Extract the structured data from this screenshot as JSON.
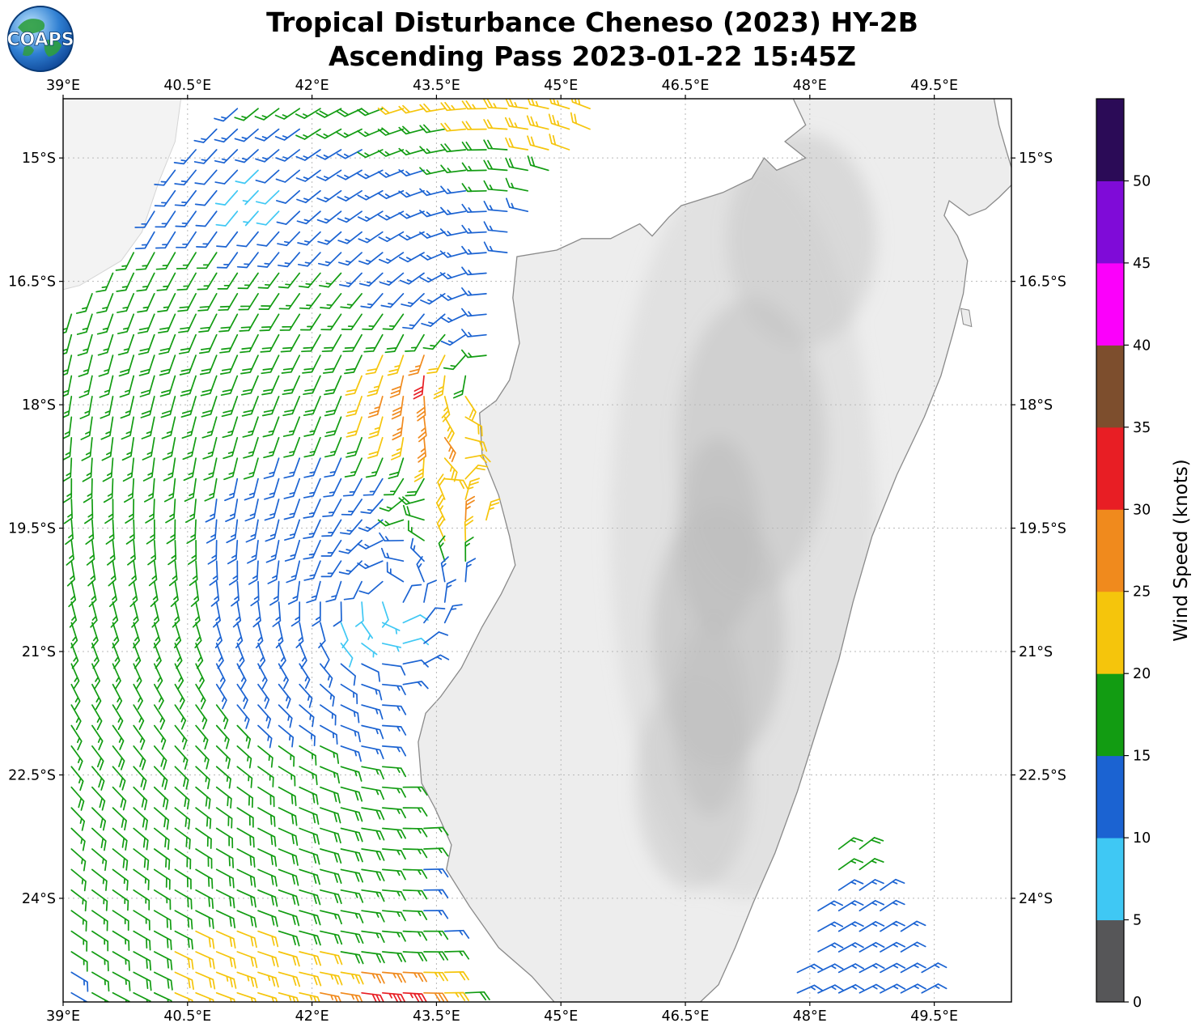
{
  "header": {
    "title_line1": "Tropical Disturbance Cheneso (2023) HY-2B",
    "title_line2": "Ascending Pass 2023-01-22 15:45Z",
    "logo_text": "COAPS"
  },
  "chart_data": {
    "type": "wind_barb_map",
    "storm": "Tropical Disturbance Cheneso (2023)",
    "satellite": "HY-2B",
    "pass_type": "Ascending",
    "datetime_utc": "2023-01-22 15:45Z",
    "extent": {
      "west": 39.0,
      "east": 50.43,
      "north": -14.28,
      "south": -25.26
    },
    "x_ticks": [
      {
        "v": 39.0,
        "label": "39°E"
      },
      {
        "v": 40.5,
        "label": "40.5°E"
      },
      {
        "v": 42.0,
        "label": "42°E"
      },
      {
        "v": 43.5,
        "label": "43.5°E"
      },
      {
        "v": 45.0,
        "label": "45°E"
      },
      {
        "v": 46.5,
        "label": "46.5°E"
      },
      {
        "v": 48.0,
        "label": "48°E"
      },
      {
        "v": 49.5,
        "label": "49.5°E"
      }
    ],
    "y_ticks": [
      {
        "v": -15.0,
        "label": "15°S"
      },
      {
        "v": -16.5,
        "label": "16.5°S"
      },
      {
        "v": -18.0,
        "label": "18°S"
      },
      {
        "v": -19.5,
        "label": "19.5°S"
      },
      {
        "v": -21.0,
        "label": "21°S"
      },
      {
        "v": -22.5,
        "label": "22.5°S"
      },
      {
        "v": -24.0,
        "label": "24°S"
      }
    ],
    "grid": {
      "color": "#b8b8b8",
      "dash": "2 4"
    },
    "ocean_color": "#ffffff",
    "land_color": "#ededed",
    "coast_color": "#8a8a8a",
    "terrain_shade_color": "#bdbdbd",
    "colorbar": {
      "label": "Wind Speed (knots)",
      "ticks": [
        "0",
        "5",
        "10",
        "15",
        "20",
        "25",
        "30",
        "35",
        "40",
        "45",
        "50"
      ],
      "bins": [
        {
          "min": 0,
          "max": 5,
          "color": "#565658"
        },
        {
          "min": 5,
          "max": 10,
          "color": "#3fc8f4"
        },
        {
          "min": 10,
          "max": 15,
          "color": "#1b63d2"
        },
        {
          "min": 15,
          "max": 20,
          "color": "#129c12"
        },
        {
          "min": 20,
          "max": 25,
          "color": "#f5c50c"
        },
        {
          "min": 25,
          "max": 30,
          "color": "#f08a1d"
        },
        {
          "min": 30,
          "max": 35,
          "color": "#e81e24"
        },
        {
          "min": 35,
          "max": 40,
          "color": "#7d4e2d"
        },
        {
          "min": 40,
          "max": 45,
          "color": "#fb00fb"
        },
        {
          "min": 45,
          "max": 50,
          "color": "#7f0bd8"
        },
        {
          "min": 50,
          "max": 55,
          "color": "#2b0b57"
        }
      ]
    },
    "barb_grid_spacing_deg": 0.25,
    "wind_field_model": {
      "base_knots": 13,
      "background": {
        "u": -2.5,
        "v": 1.0,
        "u_extra_south": -2.5,
        "south_start": -21,
        "south_span": 4
      },
      "vortices": [
        {
          "x": 42.8,
          "y": -20.8,
          "s": 20,
          "rc": 1.0,
          "p": 0.55
        },
        {
          "x": 44.3,
          "y": -17.2,
          "s": 16,
          "rc": 1.1,
          "p": 0.7
        }
      ],
      "speed_bumps": [
        {
          "x": 43.2,
          "y": -17.9,
          "sx": 0.8,
          "sy": 0.62,
          "a": 13
        },
        {
          "x": 43.3,
          "y": -17.55,
          "sx": 0.3,
          "sy": 0.25,
          "a": 7
        },
        {
          "x": 45.0,
          "y": -14.5,
          "sx": 1.4,
          "sy": 0.9,
          "a": 9
        },
        {
          "x": 43.2,
          "y": -13.9,
          "sx": 1.8,
          "sy": 0.75,
          "a": 9
        },
        {
          "x": 43.85,
          "y": -19.4,
          "sx": 0.55,
          "sy": 0.5,
          "a": 12
        },
        {
          "x": 43.6,
          "y": -18.55,
          "sx": 0.5,
          "sy": 0.4,
          "a": 8
        },
        {
          "x": 42.75,
          "y": -20.75,
          "sx": 0.45,
          "sy": 0.4,
          "a": -8
        },
        {
          "x": 41.35,
          "y": -15.55,
          "sx": 0.5,
          "sy": 0.45,
          "a": -8
        },
        {
          "x": 42.9,
          "y": -25.4,
          "sx": 1.1,
          "sy": 0.7,
          "a": 16
        },
        {
          "x": 43.0,
          "y": -25.15,
          "sx": 0.45,
          "sy": 0.3,
          "a": 6
        },
        {
          "x": 40.9,
          "y": -24.9,
          "sx": 1.3,
          "sy": 0.8,
          "a": 9
        },
        {
          "x": 42.2,
          "y": -23.2,
          "sx": 1.2,
          "sy": 0.9,
          "a": 6
        },
        {
          "x": 39.3,
          "y": -20.0,
          "sx": 1.6,
          "sy": 3.0,
          "a": 4
        },
        {
          "x": 41.2,
          "y": -17.2,
          "sx": 1.6,
          "sy": 1.2,
          "a": 6
        },
        {
          "x": 40.0,
          "y": -23.0,
          "sx": 1.6,
          "sy": 1.3,
          "a": 4
        },
        {
          "x": 48.6,
          "y": -23.4,
          "sx": 0.55,
          "sy": 0.45,
          "a": 5
        }
      ]
    },
    "swaths": [
      {
        "name": "main-west-swath",
        "polygon": [
          [
            41.05,
            -14.3
          ],
          [
            45.65,
            -14.3
          ],
          [
            44.85,
            -15.4
          ],
          [
            44.35,
            -16.4
          ],
          [
            44.15,
            -17.1
          ],
          [
            44.05,
            -18.1
          ],
          [
            43.95,
            -19.0
          ],
          [
            44.15,
            -19.5
          ],
          [
            43.9,
            -20.1
          ],
          [
            43.6,
            -20.9
          ],
          [
            43.0,
            -21.65
          ],
          [
            42.95,
            -22.35
          ],
          [
            43.25,
            -22.9
          ],
          [
            43.5,
            -23.45
          ],
          [
            43.4,
            -23.95
          ],
          [
            43.8,
            -24.55
          ],
          [
            43.9,
            -25.26
          ],
          [
            39.02,
            -25.26
          ],
          [
            39.02,
            -16.95
          ],
          [
            39.6,
            -16.05
          ],
          [
            40.3,
            -15.2
          ]
        ]
      },
      {
        "name": "southeast-patch",
        "polygon": [
          [
            48.5,
            -23.15
          ],
          [
            48.95,
            -23.8
          ],
          [
            49.4,
            -24.85
          ],
          [
            49.38,
            -25.26
          ],
          [
            47.7,
            -25.26
          ],
          [
            47.95,
            -24.3
          ],
          [
            48.25,
            -23.55
          ]
        ]
      }
    ],
    "coastlines": {
      "madagascar": [
        [
          47.8,
          -14.28
        ],
        [
          47.95,
          -14.6
        ],
        [
          47.7,
          -14.8
        ],
        [
          47.95,
          -15.0
        ],
        [
          47.6,
          -15.15
        ],
        [
          47.45,
          -15.0
        ],
        [
          47.3,
          -15.25
        ],
        [
          46.95,
          -15.42
        ],
        [
          46.45,
          -15.58
        ],
        [
          46.3,
          -15.72
        ],
        [
          46.1,
          -15.95
        ],
        [
          45.95,
          -15.8
        ],
        [
          45.6,
          -15.98
        ],
        [
          45.25,
          -15.98
        ],
        [
          44.95,
          -16.12
        ],
        [
          44.47,
          -16.2
        ],
        [
          44.42,
          -16.7
        ],
        [
          44.5,
          -17.25
        ],
        [
          44.38,
          -17.7
        ],
        [
          44.22,
          -17.95
        ],
        [
          44.02,
          -18.1
        ],
        [
          44.05,
          -18.6
        ],
        [
          44.25,
          -19.1
        ],
        [
          44.38,
          -19.6
        ],
        [
          44.45,
          -19.95
        ],
        [
          44.28,
          -20.3
        ],
        [
          44.05,
          -20.7
        ],
        [
          43.8,
          -21.2
        ],
        [
          43.55,
          -21.55
        ],
        [
          43.37,
          -21.75
        ],
        [
          43.28,
          -22.1
        ],
        [
          43.32,
          -22.6
        ],
        [
          43.48,
          -22.9
        ],
        [
          43.68,
          -23.35
        ],
        [
          43.62,
          -23.65
        ],
        [
          43.9,
          -24.1
        ],
        [
          44.25,
          -24.6
        ],
        [
          44.65,
          -24.95
        ],
        [
          44.92,
          -25.26
        ],
        [
          46.68,
          -25.26
        ],
        [
          46.9,
          -25.05
        ],
        [
          47.1,
          -24.6
        ],
        [
          47.32,
          -24.05
        ],
        [
          47.58,
          -23.45
        ],
        [
          47.85,
          -22.7
        ],
        [
          48.1,
          -21.9
        ],
        [
          48.35,
          -21.1
        ],
        [
          48.52,
          -20.4
        ],
        [
          48.75,
          -19.6
        ],
        [
          49.05,
          -18.85
        ],
        [
          49.38,
          -18.15
        ],
        [
          49.58,
          -17.65
        ],
        [
          49.72,
          -17.15
        ],
        [
          49.85,
          -16.65
        ],
        [
          49.9,
          -16.25
        ],
        [
          49.78,
          -15.95
        ],
        [
          49.62,
          -15.7
        ],
        [
          49.68,
          -15.52
        ],
        [
          49.92,
          -15.7
        ],
        [
          50.12,
          -15.62
        ],
        [
          50.28,
          -15.48
        ],
        [
          50.48,
          -15.28
        ],
        [
          50.38,
          -14.95
        ],
        [
          50.28,
          -14.6
        ],
        [
          50.22,
          -14.28
        ]
      ],
      "africa": [
        [
          39.0,
          -14.28
        ],
        [
          40.42,
          -14.28
        ],
        [
          40.35,
          -14.8
        ],
        [
          40.15,
          -15.3
        ],
        [
          39.95,
          -15.9
        ],
        [
          39.7,
          -16.25
        ],
        [
          39.2,
          -16.55
        ],
        [
          39.0,
          -16.6
        ]
      ],
      "nosy_boraha": [
        [
          49.82,
          -16.83
        ],
        [
          49.92,
          -16.85
        ],
        [
          49.95,
          -17.05
        ],
        [
          49.85,
          -17.02
        ]
      ]
    }
  }
}
